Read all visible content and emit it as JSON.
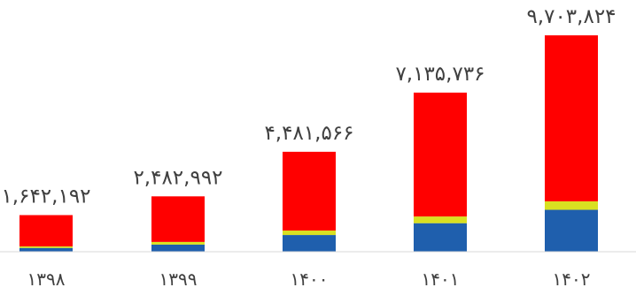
{
  "chart_data": {
    "type": "bar",
    "stacked": true,
    "categories": [
      "۱۳۹۸",
      "۱۳۹۹",
      "۱۴۰۰",
      "۱۴۰۱",
      "۱۴۰۲"
    ],
    "series": [
      {
        "color": "#1f5fad",
        "values": [
          170000,
          320000,
          750000,
          1280000,
          1880000
        ]
      },
      {
        "color": "#d9e021",
        "values": [
          70000,
          120000,
          200000,
          300000,
          380000
        ]
      },
      {
        "color": "#ff0000",
        "values": [
          1402192,
          2042992,
          3531566,
          5555736,
          7443824
        ]
      }
    ],
    "totals": [
      1642192,
      2482992,
      4481566,
      7135736,
      9703824
    ],
    "total_labels": [
      "۱,۶۴۲,۱۹۲",
      "۲,۴۸۲,۹۹۲",
      "۴,۴۸۱,۵۶۶",
      "۷,۱۳۵,۷۳۶",
      "۹,۷۰۳,۸۲۴"
    ],
    "title": "",
    "xlabel": "",
    "ylabel": "",
    "ylim": [
      0,
      10000000
    ],
    "grid": false,
    "legend": "none"
  }
}
